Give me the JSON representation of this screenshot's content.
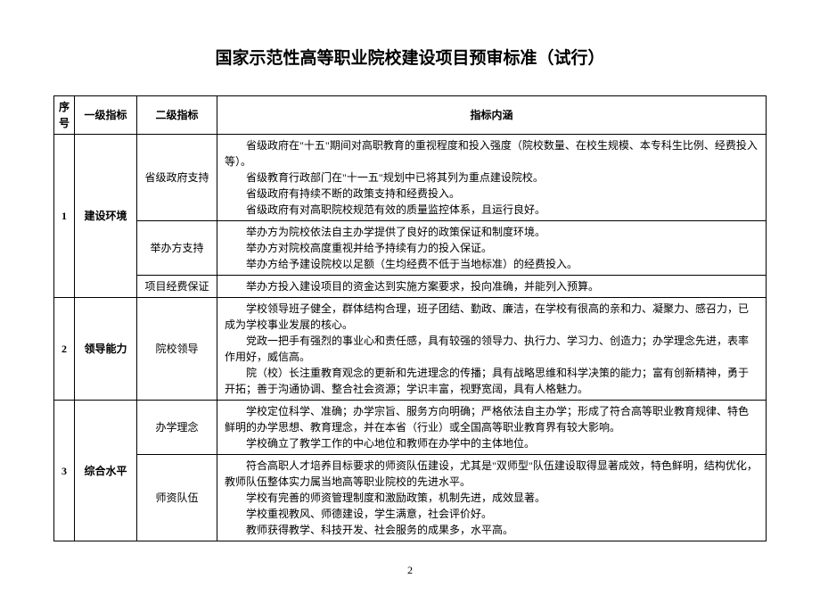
{
  "title": "国家示范性高等职业院校建设项目预审标准（试行）",
  "pageNumber": "2",
  "headers": {
    "num": "序号",
    "level1": "一级指标",
    "level2": "二级指标",
    "content": "指标内涵"
  },
  "rows": [
    {
      "num": "1",
      "level1": "建设环境",
      "sub": [
        {
          "level2": "省级政府支持",
          "paras": [
            "省级政府在\"十五\"期间对高职教育的重视程度和投入强度（院校数量、在校生规模、本专科生比例、经费投入等）。",
            "省级教育行政部门在\"十一五\"规划中已将其列为重点建设院校。",
            "省级政府有持续不断的政策支持和经费投入。",
            "省级政府有对高职院校规范有效的质量监控体系，且运行良好。"
          ]
        },
        {
          "level2": "举办方支持",
          "paras": [
            "举办方为院校依法自主办学提供了良好的政策保证和制度环境。",
            "举办方对院校高度重视并给予持续有力的投入保证。",
            "举办方给予建设院校以足额（生均经费不低于当地标准）的经费投入。"
          ]
        },
        {
          "level2": "项目经费保证",
          "paras": [
            "举办方投入建设项目的资金达到实施方案要求，投向准确，并能列入预算。"
          ]
        }
      ]
    },
    {
      "num": "2",
      "level1": "领导能力",
      "sub": [
        {
          "level2": "院校领导",
          "paras": [
            "学校领导班子健全，群体结构合理，班子团结、勤政、廉洁，在学校有很高的亲和力、凝聚力、感召力，已成为学校事业发展的核心。",
            "党政一把手有强烈的事业心和责任感，具有较强的领导力、执行力、学习力、创造力；办学理念先进，表率作用好，威信高。",
            "院（校）长注重教育观念的更新和先进理念的传播；具有战略思维和科学决策的能力；富有创新精神，勇于开拓；善于沟通协调、整合社会资源；学识丰富，视野宽阔，具有人格魅力。"
          ]
        }
      ]
    },
    {
      "num": "3",
      "level1": "综合水平",
      "sub": [
        {
          "level2": "办学理念",
          "paras": [
            "学校定位科学、准确；办学宗旨、服务方向明确；严格依法自主办学；形成了符合高等职业教育规律、特色鲜明的办学思想、教育理念，并在本省（行业）或全国高等职业教育界有较大影响。",
            "学校确立了教学工作的中心地位和教师在办学中的主体地位。"
          ]
        },
        {
          "level2": "师资队伍",
          "paras": [
            "符合高职人才培养目标要求的师资队伍建设，尤其是\"双师型\"队伍建设取得显著成效，特色鲜明，结构优化，教师队伍整体实力属当地高等职业院校的先进水平。",
            "学校有完善的师资管理制度和激励政策，机制先进，成效显著。",
            "学校重视教风、师德建设，学生满意，社会评价好。",
            "教师获得教学、科技开发、社会服务的成果多，水平高。"
          ]
        }
      ]
    }
  ]
}
